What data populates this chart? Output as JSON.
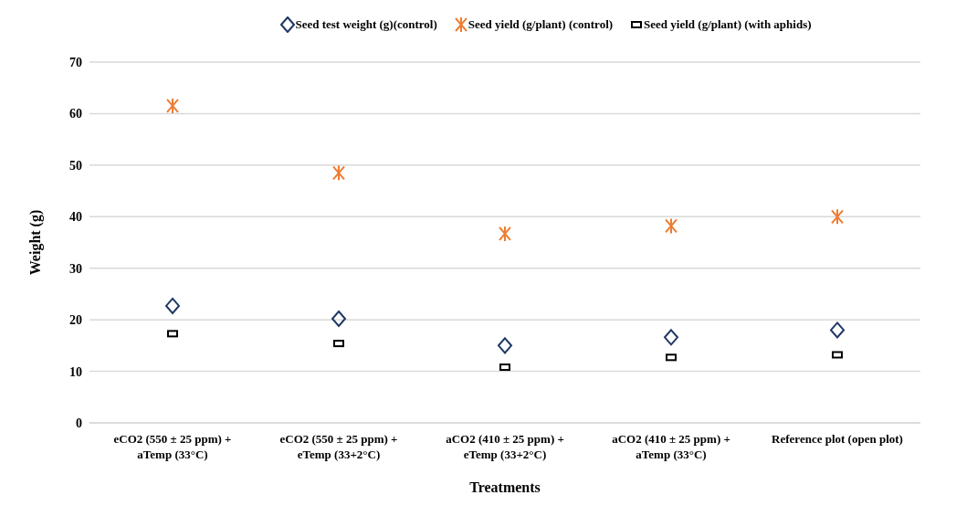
{
  "chart_data": {
    "type": "scatter",
    "xlabel": "Treatments",
    "ylabel": "Weight (g)",
    "categories": [
      "eCO2 (550 ± 25 ppm) + aTemp (33°C)",
      "eCO2 (550 ± 25 ppm) + eTemp (33+2°C)",
      "aCO2 (410 ± 25 ppm) + eTemp (33+2°C)",
      "aCO2 (410 ± 25 ppm) + aTemp (33°C)",
      "Reference plot (open plot)"
    ],
    "series": [
      {
        "name": "Seed test weight (g)(control)",
        "color": "#203864",
        "marker": "diamond",
        "values": [
          22.7,
          20.2,
          15,
          16.6,
          18
        ]
      },
      {
        "name": "Seed yield (g/plant) (control)",
        "color": "#ed7d31",
        "marker": "cross",
        "values": [
          61.5,
          48.5,
          36.7,
          38.2,
          40
        ]
      },
      {
        "name": "Seed yield (g/plant) (with aphids)",
        "color": "#000000",
        "marker": "square",
        "values": [
          17.3,
          15.4,
          10.8,
          12.7,
          13.2
        ]
      }
    ],
    "ylim": [
      0,
      70
    ],
    "yticks": [
      0,
      10,
      20,
      30,
      40,
      50,
      60,
      70
    ],
    "grid": "y",
    "legend": "top"
  }
}
